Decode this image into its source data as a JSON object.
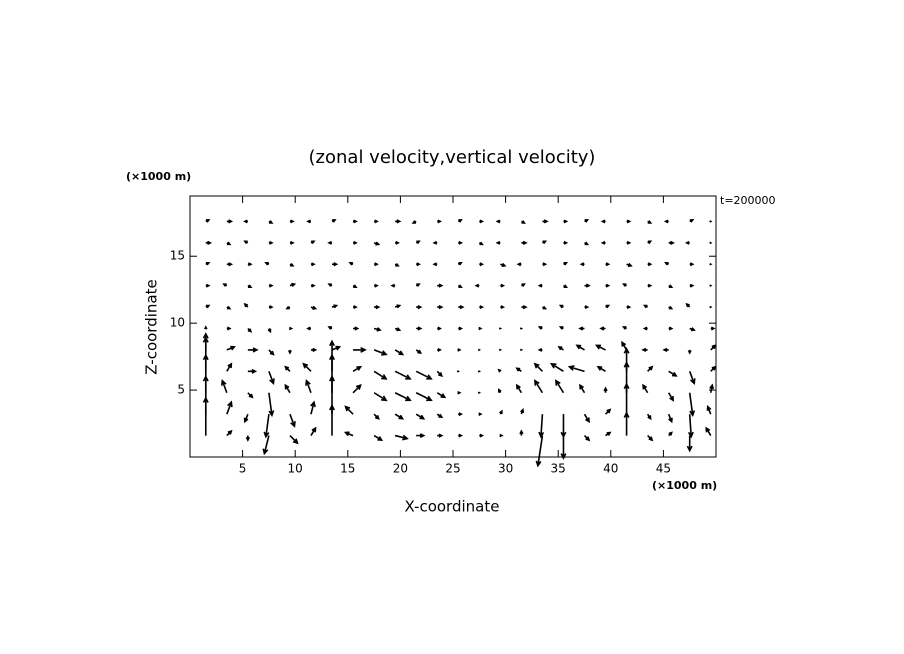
{
  "chart_data": {
    "type": "quiver",
    "title": "(zonal velocity,vertical velocity)",
    "x_label": "X-coordinate",
    "y_label": "Z-coordinate",
    "x_unit": "(×1000 m)",
    "y_unit": "(×1000 m)",
    "annotation": "t=200000",
    "xlim": [
      0,
      50
    ],
    "ylim": [
      0,
      19.5
    ],
    "xticks": [
      5,
      10,
      15,
      20,
      25,
      30,
      35,
      40,
      45
    ],
    "yticks": [
      5,
      10,
      15
    ],
    "color": "#000000",
    "x": [
      1.5,
      3.5,
      5.5,
      7.5,
      9.5,
      11.5,
      13.5,
      15.5,
      17.5,
      19.5,
      21.5,
      23.5,
      25.5,
      27.5,
      29.5,
      31.5,
      33.5,
      35.5,
      37.5,
      39.5,
      41.5,
      43.5,
      45.5,
      47.5,
      49.5
    ],
    "z": [
      1.6,
      3.2,
      4.8,
      6.4,
      8.0,
      9.6,
      11.2,
      12.8,
      14.4,
      16.0,
      17.6
    ],
    "u": [
      [
        0,
        0.3,
        0,
        -0.3,
        0.5,
        0.3,
        0,
        -0.5,
        0.5,
        0.8,
        0.5,
        0.3,
        0.2,
        0.2,
        0.1,
        0,
        -0.3,
        0,
        0.3,
        0.3,
        0,
        0.3,
        0.2,
        0,
        -0.3
      ],
      [
        0,
        0.3,
        -0.2,
        -0.2,
        0.3,
        0.2,
        0,
        -0.5,
        0.3,
        0.5,
        0.5,
        0.3,
        0.2,
        0.1,
        0.1,
        0.1,
        -0.1,
        0,
        0.3,
        0.3,
        0,
        0.2,
        0.2,
        0.1,
        -0.2
      ],
      [
        0,
        -0.3,
        0.3,
        0.2,
        -0.3,
        -0.3,
        0,
        0.5,
        0.8,
        1,
        1,
        0.5,
        0.1,
        0,
        -0.1,
        -0.3,
        -0.5,
        -0.5,
        -0.3,
        0,
        0,
        -0.3,
        0.3,
        0.2,
        0.1
      ],
      [
        0,
        0.3,
        0.5,
        0.3,
        -0.3,
        -0.5,
        0,
        0.5,
        0.8,
        1,
        1,
        0.3,
        0,
        0,
        -0.1,
        -0.3,
        -0.5,
        -0.8,
        -1,
        -0.5,
        0,
        0.3,
        0.5,
        0.3,
        0.3
      ],
      [
        0,
        0.5,
        0.6,
        0.3,
        0,
        0.3,
        0.5,
        0.8,
        0.8,
        0.5,
        0.3,
        0.2,
        0.1,
        0,
        0,
        0,
        -0.2,
        -0.3,
        -0.5,
        -0.6,
        -0.3,
        -0.3,
        -0.3,
        0,
        0.3
      ],
      [
        0,
        0.2,
        0.2,
        0.1,
        0.1,
        -0.2,
        -0.2,
        0.3,
        0.4,
        0.3,
        0.3,
        0.2,
        0.2,
        0.1,
        0,
        0,
        -0.2,
        -0.2,
        -0.3,
        -0.3,
        -0.2,
        -0.2,
        0.2,
        0.3,
        0.2
      ],
      [
        0.2,
        0.2,
        -0.2,
        0.2,
        -0.2,
        0.3,
        0.3,
        0.2,
        0.3,
        0.3,
        0.3,
        0.3,
        0.3,
        0.2,
        0.2,
        0.3,
        0.2,
        -0.2,
        0.2,
        0.2,
        0.2,
        -0.2,
        0.2,
        -0.2,
        0
      ],
      [
        0.2,
        -0.2,
        0.2,
        0.2,
        0.3,
        0.2,
        -0.2,
        0.2,
        0.2,
        -0.2,
        0.2,
        0.3,
        0.2,
        -0.2,
        0.2,
        0.2,
        -0.2,
        0.2,
        0.3,
        0.2,
        -0.2,
        0.2,
        0.2,
        0.2,
        0
      ],
      [
        0.2,
        0.3,
        0.2,
        -0.2,
        0.2,
        0.2,
        0.3,
        -0.2,
        0.2,
        0.2,
        0.2,
        -0.2,
        0.2,
        0.2,
        0.3,
        -0.2,
        0.2,
        0.2,
        -0.2,
        0.2,
        0.3,
        0.2,
        -0.2,
        0.2,
        0
      ],
      [
        0.3,
        0.2,
        -0.2,
        0.2,
        0.2,
        0.2,
        -0.2,
        0.2,
        0.3,
        0.2,
        0.2,
        -0.2,
        0.2,
        0.2,
        -0.2,
        0.3,
        0.2,
        0.2,
        0.2,
        -0.2,
        0.2,
        0.2,
        0.3,
        -0.2,
        0
      ],
      [
        0.2,
        0.3,
        -0.2,
        0.2,
        0.2,
        -0.2,
        0.2,
        0.2,
        0.2,
        0.3,
        -0.2,
        0.2,
        0.2,
        0.2,
        -0.2,
        0.2,
        0.3,
        0.2,
        0.2,
        -0.2,
        0.2,
        0.2,
        -0.2,
        0.2,
        0
      ]
    ],
    "w": [
      [
        2.5,
        0.3,
        -0.3,
        -1.2,
        -0.5,
        0.5,
        2,
        0.2,
        -0.3,
        -0.2,
        0,
        0,
        0,
        0,
        0,
        0.3,
        -2,
        -1.5,
        -0.3,
        0.2,
        1.5,
        -0.3,
        0.2,
        -1,
        0.5
      ],
      [
        2.5,
        0.8,
        -0.5,
        -1.5,
        -0.8,
        0.8,
        2.5,
        0.5,
        -0.3,
        -0.3,
        -0.3,
        -0.2,
        0,
        0,
        0.2,
        0.3,
        -1.5,
        -1.5,
        -0.5,
        0.3,
        2,
        -0.3,
        -0.5,
        -1.5,
        0.5
      ],
      [
        2.5,
        0.8,
        -0.3,
        -1.5,
        0.5,
        0.8,
        2.5,
        0.5,
        -0.5,
        -0.5,
        -0.5,
        -0.3,
        0,
        0,
        0.2,
        0.5,
        0.8,
        0.8,
        0.5,
        0.3,
        2,
        0.5,
        -0.5,
        -1.5,
        0.5
      ],
      [
        2.5,
        0.5,
        0,
        -0.8,
        0.3,
        0.5,
        2,
        0.3,
        -0.5,
        -0.5,
        -0.5,
        -0.3,
        0,
        0,
        0.1,
        0.2,
        0.5,
        0.5,
        0.3,
        0.3,
        1.5,
        0.3,
        -0.3,
        -0.8,
        0.3
      ],
      [
        0.8,
        0.2,
        0,
        -0.3,
        -0.2,
        0,
        0.2,
        0,
        -0.3,
        -0.3,
        -0.2,
        0,
        0,
        0,
        0,
        0,
        0,
        0.2,
        0.3,
        0.3,
        0.5,
        0,
        0,
        -0.2,
        0.3
      ],
      [
        0.1,
        0,
        -0.2,
        -0.2,
        0,
        0,
        0.1,
        0,
        -0.1,
        -0.1,
        0,
        0,
        0,
        0,
        0,
        0,
        0.1,
        0.1,
        0,
        0,
        0.1,
        0,
        0,
        -0.1,
        0
      ],
      [
        0.1,
        -0.1,
        0.2,
        0,
        -0.1,
        -0.1,
        0.1,
        0,
        0,
        0.1,
        0,
        0,
        0,
        0,
        0,
        0,
        -0.1,
        0.1,
        0,
        0.1,
        0,
        0.1,
        -0.1,
        0.2,
        0
      ],
      [
        0,
        0.1,
        -0.1,
        0,
        0.1,
        0,
        0.1,
        -0.1,
        0,
        0,
        0.1,
        0,
        -0.1,
        0,
        0,
        0.1,
        0,
        -0.1,
        0,
        0,
        0.1,
        0,
        -0.1,
        0,
        0
      ],
      [
        0.1,
        0,
        0,
        0.1,
        -0.1,
        0,
        0,
        0.1,
        0,
        -0.1,
        0,
        0,
        0.1,
        0,
        -0.1,
        0,
        0,
        0.1,
        0,
        0,
        -0.1,
        0,
        0.1,
        0,
        0
      ],
      [
        0,
        -0.1,
        0.1,
        0,
        0,
        0.1,
        0,
        0,
        -0.1,
        0,
        0.1,
        0,
        0,
        -0.1,
        0,
        0,
        0.1,
        0,
        -0.1,
        0,
        0,
        0.1,
        0,
        0,
        0
      ],
      [
        0.1,
        0,
        0,
        -0.1,
        0,
        0,
        0.1,
        0,
        0,
        0,
        -0.1,
        0,
        0.1,
        0,
        0,
        -0.1,
        0,
        0,
        0.1,
        0,
        0,
        -0.1,
        0,
        0.1,
        0
      ]
    ]
  }
}
